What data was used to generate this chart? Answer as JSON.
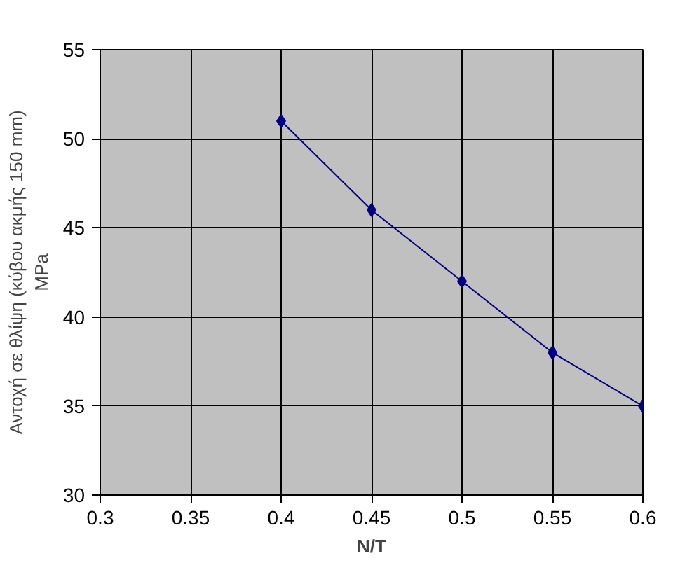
{
  "chart_data": {
    "type": "line",
    "xlabel": "N/T",
    "ylabel": "Αντοχή σε θλίψη (κύβου ακμής 150 mm)\nMPa",
    "x": [
      0.4,
      0.45,
      0.5,
      0.55,
      0.6
    ],
    "series": [
      {
        "color": "#000080",
        "values": [
          51,
          46,
          42,
          38,
          35
        ]
      }
    ],
    "xlim": [
      0.3,
      0.6
    ],
    "xticks": [
      0.3,
      0.35,
      0.4,
      0.45,
      0.5,
      0.55,
      0.6
    ],
    "ylim": [
      30,
      55
    ],
    "yticks": [
      30,
      35,
      40,
      45,
      50,
      55
    ],
    "grid": true,
    "marker": "diamond",
    "line_style": "solid"
  }
}
